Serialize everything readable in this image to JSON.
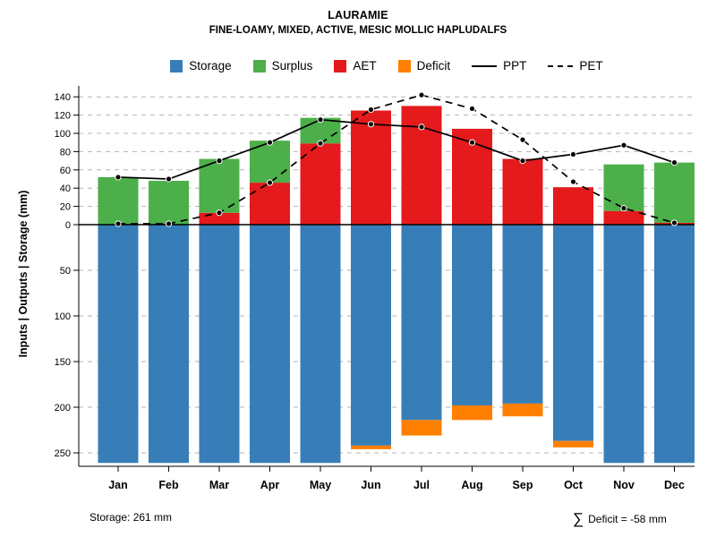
{
  "chart_data": {
    "type": "bar",
    "title": "LAURAMIE",
    "subtitle": "FINE-LOAMY, MIXED, ACTIVE, MESIC MOLLIC HAPLUDALFS",
    "ylabel": "Inputs | Outputs | Storage   (mm)",
    "categories": [
      "Jan",
      "Feb",
      "Mar",
      "Apr",
      "May",
      "Jun",
      "Jul",
      "Aug",
      "Sep",
      "Oct",
      "Nov",
      "Dec"
    ],
    "series": [
      {
        "name": "Storage",
        "kind": "bar-down",
        "color": "#377eb8",
        "values": [
          261,
          261,
          261,
          261,
          261,
          242,
          214,
          198,
          196,
          237,
          261,
          261
        ]
      },
      {
        "name": "Surplus",
        "kind": "bar-up",
        "color": "#4daf4a",
        "values": [
          52,
          48,
          59,
          46,
          28,
          0,
          0,
          0,
          0,
          0,
          51,
          66
        ]
      },
      {
        "name": "AET",
        "kind": "bar-up",
        "color": "#e41a1c",
        "values": [
          0,
          0,
          13,
          46,
          89,
          125,
          130,
          105,
          72,
          41,
          15,
          2
        ]
      },
      {
        "name": "Deficit",
        "kind": "bar-down",
        "color": "#ff7f00",
        "values": [
          0,
          0,
          0,
          0,
          0,
          4,
          17,
          16,
          14,
          7,
          0,
          0
        ]
      },
      {
        "name": "PPT",
        "kind": "line-solid",
        "color": "#000000",
        "values": [
          52,
          50,
          70,
          90,
          115,
          110,
          107,
          90,
          70,
          77,
          87,
          68
        ]
      },
      {
        "name": "PET",
        "kind": "line-dashed",
        "color": "#000000",
        "values": [
          1,
          1,
          13,
          46,
          89,
          126,
          142,
          127,
          93,
          47,
          18,
          2
        ]
      }
    ],
    "y_axis_up": {
      "ticks": [
        0,
        20,
        40,
        60,
        80,
        100,
        120,
        140
      ],
      "max": 140
    },
    "y_axis_down": {
      "ticks": [
        50,
        100,
        150,
        200,
        250
      ],
      "max": 261
    },
    "grid": true,
    "legend_position": "top",
    "annotations": {
      "storage_note": "Storage: 261 mm",
      "deficit_sigma": "∑",
      "deficit_note": "Deficit = -58 mm"
    }
  }
}
